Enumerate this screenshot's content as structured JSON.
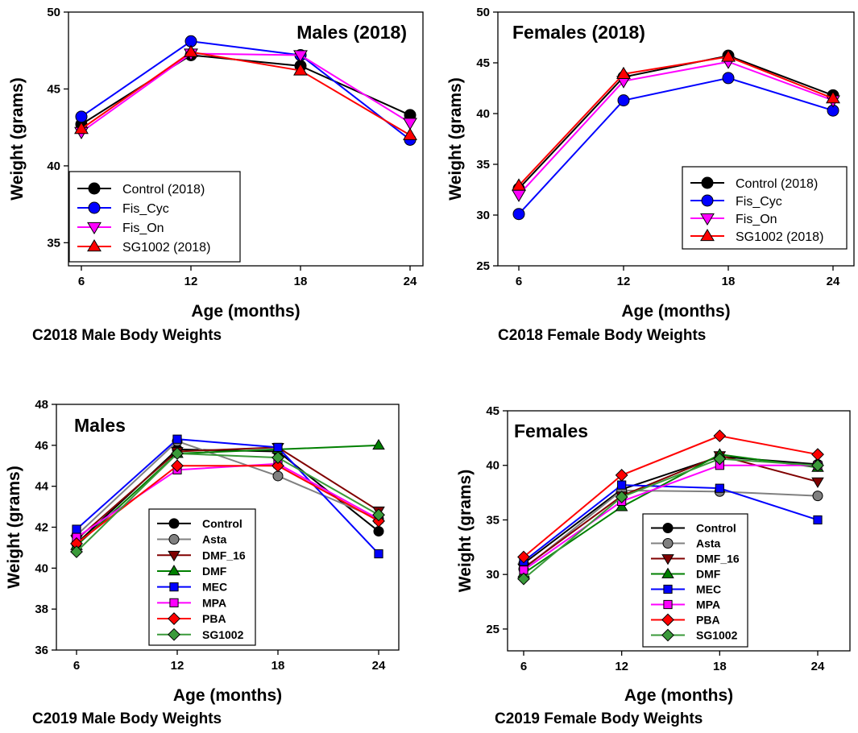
{
  "chart_data": [
    {
      "type": "line",
      "title": "Males (2018)",
      "caption": "C2018 Male Body Weights",
      "xlabel": "Age (months)",
      "ylabel": "Weight (grams)",
      "x": [
        6,
        12,
        18,
        24
      ],
      "xticks": [
        "6",
        "12",
        "18",
        "24"
      ],
      "ylim": [
        33.5,
        50
      ],
      "yticks": [
        "35",
        "40",
        "45",
        "50"
      ],
      "legend_position": "bottom-left",
      "series": [
        {
          "name": "Control (2018)",
          "values": [
            42.7,
            47.2,
            46.5,
            43.3
          ],
          "color": "#000000",
          "marker": "circle"
        },
        {
          "name": "Fis_Cyc",
          "values": [
            43.2,
            48.1,
            47.2,
            41.7
          ],
          "color": "#0000ff",
          "marker": "circle"
        },
        {
          "name": "Fis_On",
          "values": [
            42.2,
            47.3,
            47.2,
            42.8
          ],
          "color": "#ff00ff",
          "marker": "triangle-down"
        },
        {
          "name": "SG1002 (2018)",
          "values": [
            42.4,
            47.4,
            46.2,
            42.0
          ],
          "color": "#ff0000",
          "marker": "triangle-up"
        }
      ]
    },
    {
      "type": "line",
      "title": "Females (2018)",
      "caption": "C2018 Female Body Weights",
      "xlabel": "Age (months)",
      "ylabel": "Weight (grams)",
      "x": [
        6,
        12,
        18,
        24
      ],
      "xticks": [
        "6",
        "12",
        "18",
        "24"
      ],
      "ylim": [
        25,
        50
      ],
      "yticks": [
        "25",
        "30",
        "35",
        "40",
        "45",
        "50"
      ],
      "legend_position": "bottom-right",
      "series": [
        {
          "name": "Control (2018)",
          "values": [
            32.6,
            43.6,
            45.7,
            41.8
          ],
          "color": "#000000",
          "marker": "circle"
        },
        {
          "name": "Fis_Cyc",
          "values": [
            30.1,
            41.3,
            43.5,
            40.3
          ],
          "color": "#0000ff",
          "marker": "circle"
        },
        {
          "name": "Fis_On",
          "values": [
            32.0,
            43.2,
            45.1,
            41.3
          ],
          "color": "#ff00ff",
          "marker": "triangle-down"
        },
        {
          "name": "SG1002 (2018)",
          "values": [
            32.9,
            43.9,
            45.6,
            41.5
          ],
          "color": "#ff0000",
          "marker": "triangle-up"
        }
      ]
    },
    {
      "type": "line",
      "title": "Males",
      "caption": "C2019 Male Body Weights",
      "xlabel": "Age (months)",
      "ylabel": "Weight (grams)",
      "x": [
        6,
        12,
        18,
        24
      ],
      "xticks": [
        "6",
        "12",
        "18",
        "24"
      ],
      "ylim": [
        36,
        48
      ],
      "yticks": [
        "36",
        "38",
        "40",
        "42",
        "44",
        "46",
        "48"
      ],
      "legend_position": "bottom-center",
      "series": [
        {
          "name": "Control",
          "values": [
            41.2,
            45.8,
            45.7,
            41.8
          ],
          "color": "#000000",
          "marker": "circle"
        },
        {
          "name": "Asta",
          "values": [
            41.6,
            46.2,
            44.5,
            42.4
          ],
          "color": "#808080",
          "marker": "circle"
        },
        {
          "name": "DMF_16",
          "values": [
            41.4,
            45.7,
            45.9,
            42.8
          ],
          "color": "#800000",
          "marker": "triangle-down"
        },
        {
          "name": "DMF",
          "values": [
            41.1,
            45.6,
            45.8,
            46.0
          ],
          "color": "#008000",
          "marker": "triangle-up"
        },
        {
          "name": "MEC",
          "values": [
            41.9,
            46.3,
            45.9,
            40.7
          ],
          "color": "#0000ff",
          "marker": "square"
        },
        {
          "name": "MPA",
          "values": [
            41.5,
            44.8,
            45.1,
            42.4
          ],
          "color": "#ff00ff",
          "marker": "square"
        },
        {
          "name": "PBA",
          "values": [
            41.2,
            45.0,
            45.0,
            42.3
          ],
          "color": "#ff0000",
          "marker": "diamond"
        },
        {
          "name": "SG1002",
          "values": [
            40.8,
            45.6,
            45.4,
            42.6
          ],
          "color": "#3a9a3a",
          "marker": "diamond"
        }
      ]
    },
    {
      "type": "line",
      "title": "Females",
      "caption": "C2019 Female Body Weights",
      "xlabel": "Age (months)",
      "ylabel": "Weight (grams)",
      "x": [
        6,
        12,
        18,
        24
      ],
      "xticks": [
        "6",
        "12",
        "18",
        "24"
      ],
      "ylim": [
        23,
        45
      ],
      "yticks": [
        "25",
        "30",
        "35",
        "40",
        "45"
      ],
      "legend_position": "bottom-center",
      "series": [
        {
          "name": "Control",
          "values": [
            31.0,
            37.8,
            40.8,
            40.1
          ],
          "color": "#000000",
          "marker": "circle"
        },
        {
          "name": "Asta",
          "values": [
            30.5,
            37.7,
            37.6,
            37.2
          ],
          "color": "#808080",
          "marker": "circle"
        },
        {
          "name": "DMF_16",
          "values": [
            30.6,
            37.2,
            40.9,
            38.5
          ],
          "color": "#800000",
          "marker": "triangle-down"
        },
        {
          "name": "DMF",
          "values": [
            30.1,
            36.2,
            41.0,
            39.8
          ],
          "color": "#008000",
          "marker": "triangle-up"
        },
        {
          "name": "MEC",
          "values": [
            31.2,
            38.2,
            37.9,
            35.0
          ],
          "color": "#0000ff",
          "marker": "square"
        },
        {
          "name": "MPA",
          "values": [
            30.4,
            36.7,
            40.0,
            40.0
          ],
          "color": "#ff00ff",
          "marker": "square"
        },
        {
          "name": "PBA",
          "values": [
            31.6,
            39.1,
            42.7,
            41.0
          ],
          "color": "#ff0000",
          "marker": "diamond"
        },
        {
          "name": "SG1002",
          "values": [
            29.6,
            37.1,
            40.6,
            40.0
          ],
          "color": "#3a9a3a",
          "marker": "diamond"
        }
      ]
    }
  ]
}
